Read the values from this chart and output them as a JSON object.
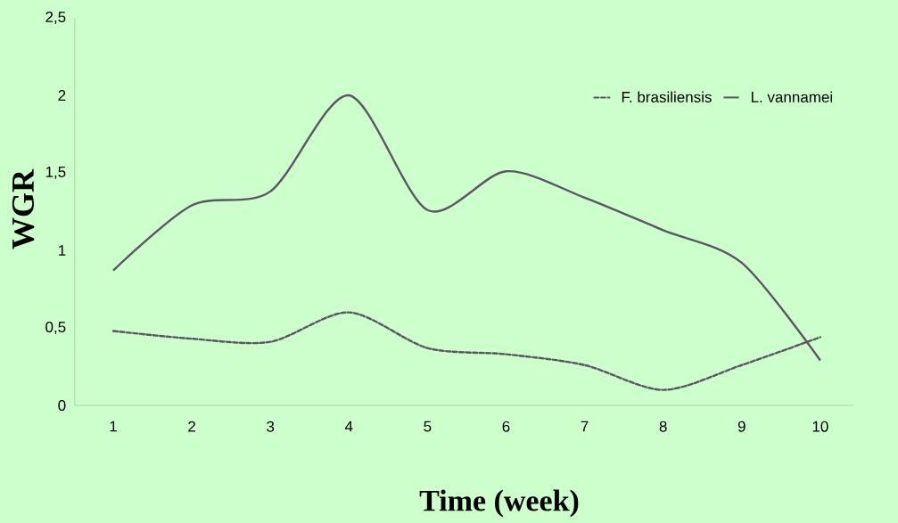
{
  "chart_data": {
    "type": "line",
    "xlabel": "Time (week)",
    "ylabel": "WGR",
    "categories": [
      "1",
      "2",
      "3",
      "4",
      "5",
      "6",
      "7",
      "8",
      "9",
      "10"
    ],
    "ylim": [
      0,
      2.5
    ],
    "yticks": [
      0,
      {
        "value": 0.5,
        "label": "0,5"
      },
      1,
      {
        "value": 1.5,
        "label": "1,5"
      },
      2,
      {
        "value": 2.5,
        "label": "2,5"
      }
    ],
    "legend": "top right",
    "marker": "none",
    "grid": false,
    "series": [
      {
        "name": "F. brasiliensis",
        "color": "#5b5760",
        "line_style": "dashed",
        "values": [
          0.48,
          0.43,
          0.41,
          0.6,
          0.37,
          0.33,
          0.26,
          0.1,
          0.26,
          0.44
        ]
      },
      {
        "name": "L. vannamei",
        "color": "#5b5760",
        "line_style": "solid",
        "values": [
          0.87,
          1.29,
          1.38,
          2.0,
          1.26,
          1.51,
          1.34,
          1.13,
          0.92,
          0.29
        ]
      }
    ]
  }
}
